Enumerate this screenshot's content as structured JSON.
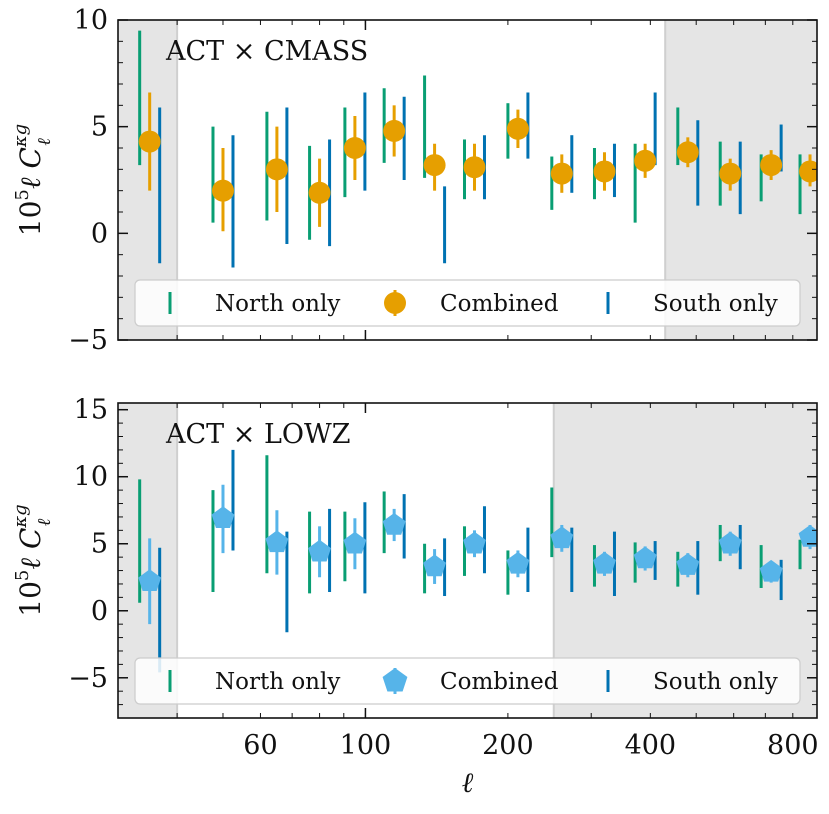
{
  "chart_data": [
    {
      "type": "errorbar",
      "title": "ACT × CMASS",
      "ylabel_text": "10",
      "ylabel_exp": "5",
      "ylabel_rest": "ℓ C",
      "ylabel_sup": "κg",
      "ylabel_sub": "ℓ",
      "ylim": [
        -5,
        10
      ],
      "yticks": [
        -5,
        0,
        5,
        10
      ],
      "ytick_labels": [
        "−5",
        "0",
        "5",
        "10"
      ],
      "xscale": "log",
      "xlim": [
        30,
        900
      ],
      "shaded_ranges": [
        [
          30,
          40
        ],
        [
          430,
          900
        ]
      ],
      "combined_marker": "circle",
      "legend": [
        {
          "label": "North only",
          "color": "#099E73",
          "kind": "line"
        },
        {
          "label": "Combined",
          "color": "#E69F00",
          "kind": "marker"
        },
        {
          "label": "South only",
          "color": "#0072B2",
          "kind": "line"
        }
      ],
      "x": [
        35,
        50,
        65,
        80,
        95,
        115,
        140,
        170,
        210,
        260,
        320,
        390,
        480,
        590,
        720,
        870
      ],
      "series": [
        {
          "name": "North only",
          "color": "#099E73",
          "lo": [
            3.2,
            0.5,
            0.6,
            -0.3,
            1.7,
            3.3,
            2.6,
            1.6,
            3.5,
            1.1,
            1.6,
            0.5,
            3.2,
            1.3,
            1.5,
            0.9
          ],
          "hi": [
            9.5,
            5.0,
            5.7,
            4.1,
            5.9,
            6.8,
            7.4,
            4.4,
            6.1,
            3.6,
            4.0,
            4.2,
            5.9,
            4.3,
            3.7,
            3.7
          ]
        },
        {
          "name": "Combined",
          "color": "#E69F00",
          "y": [
            4.3,
            2.0,
            3.0,
            1.9,
            4.0,
            4.8,
            3.2,
            3.1,
            4.9,
            2.8,
            2.9,
            3.4,
            3.8,
            2.8,
            3.2,
            2.9
          ],
          "lo": [
            2.0,
            0.1,
            1.0,
            0.3,
            2.5,
            3.6,
            2.0,
            2.0,
            4.0,
            1.9,
            2.0,
            2.6,
            3.1,
            2.0,
            2.5,
            2.2
          ],
          "hi": [
            6.6,
            4.0,
            5.0,
            3.5,
            5.5,
            6.0,
            4.2,
            4.2,
            5.8,
            3.7,
            3.8,
            4.2,
            4.5,
            3.5,
            3.9,
            3.7
          ]
        },
        {
          "name": "South only",
          "color": "#0072B2",
          "lo": [
            -1.4,
            -1.6,
            -0.5,
            -0.6,
            2.0,
            2.5,
            -1.4,
            1.6,
            3.5,
            1.9,
            1.7,
            3.2,
            1.3,
            0.9,
            2.9,
            2.4
          ],
          "hi": [
            5.9,
            4.6,
            5.9,
            4.4,
            6.6,
            6.4,
            2.2,
            4.6,
            6.6,
            4.6,
            4.2,
            6.6,
            5.3,
            4.3,
            5.1,
            5.3
          ]
        }
      ]
    },
    {
      "type": "errorbar",
      "title": "ACT × LOWZ",
      "ylabel_text": "10",
      "ylabel_exp": "5",
      "ylabel_rest": "ℓ C",
      "ylabel_sup": "κg",
      "ylabel_sub": "ℓ",
      "ylim": [
        -8,
        15.5
      ],
      "yticks": [
        -5,
        0,
        5,
        10,
        15
      ],
      "ytick_labels": [
        "−5",
        "0",
        "5",
        "10",
        "15"
      ],
      "xscale": "log",
      "xlim": [
        30,
        900
      ],
      "xticks": [
        60,
        100,
        200,
        400,
        800
      ],
      "xtick_labels": [
        "60",
        "100",
        "200",
        "400",
        "800"
      ],
      "xlabel": "ℓ",
      "shaded_ranges": [
        [
          30,
          40
        ],
        [
          250,
          900
        ]
      ],
      "combined_marker": "pentagon",
      "legend": [
        {
          "label": "North only",
          "color": "#099E73",
          "kind": "line"
        },
        {
          "label": "Combined",
          "color": "#56B4E9",
          "kind": "marker"
        },
        {
          "label": "South only",
          "color": "#0072B2",
          "kind": "line"
        }
      ],
      "x": [
        35,
        50,
        65,
        80,
        95,
        115,
        140,
        170,
        210,
        260,
        320,
        390,
        480,
        590,
        720,
        870
      ],
      "series": [
        {
          "name": "North only",
          "color": "#099E73",
          "lo": [
            0.6,
            1.4,
            2.8,
            1.3,
            2.2,
            4.3,
            1.3,
            2.6,
            1.2,
            4.0,
            1.8,
            2.1,
            1.8,
            3.7,
            1.7,
            3.1
          ],
          "hi": [
            9.8,
            9.0,
            11.6,
            7.4,
            7.4,
            8.9,
            5.0,
            6.3,
            4.5,
            9.2,
            4.9,
            5.1,
            4.4,
            6.4,
            4.9,
            5.3
          ]
        },
        {
          "name": "Combined",
          "color": "#56B4E9",
          "y": [
            2.2,
            6.9,
            5.1,
            4.4,
            5.0,
            6.4,
            3.3,
            5.0,
            3.5,
            5.4,
            3.5,
            3.9,
            3.4,
            5.0,
            2.9,
            5.5
          ],
          "lo": [
            -1.0,
            4.3,
            2.7,
            2.5,
            3.1,
            5.2,
            2.0,
            4.0,
            2.5,
            4.4,
            2.6,
            3.0,
            2.5,
            4.1,
            2.1,
            4.6
          ],
          "hi": [
            5.4,
            9.4,
            7.5,
            6.3,
            6.9,
            7.6,
            4.6,
            6.0,
            4.5,
            6.4,
            4.4,
            4.8,
            4.3,
            5.9,
            3.7,
            6.4
          ]
        },
        {
          "name": "South only",
          "color": "#0072B2",
          "lo": [
            -4.6,
            4.5,
            -1.6,
            1.4,
            1.3,
            3.9,
            1.1,
            2.8,
            1.4,
            1.4,
            1.1,
            2.3,
            1.2,
            3.1,
            0.8,
            4.0
          ],
          "hi": [
            4.7,
            12.0,
            5.9,
            7.6,
            8.1,
            8.7,
            5.4,
            7.8,
            6.2,
            6.2,
            5.9,
            5.2,
            5.2,
            6.4,
            3.8,
            8.1
          ]
        }
      ]
    }
  ]
}
